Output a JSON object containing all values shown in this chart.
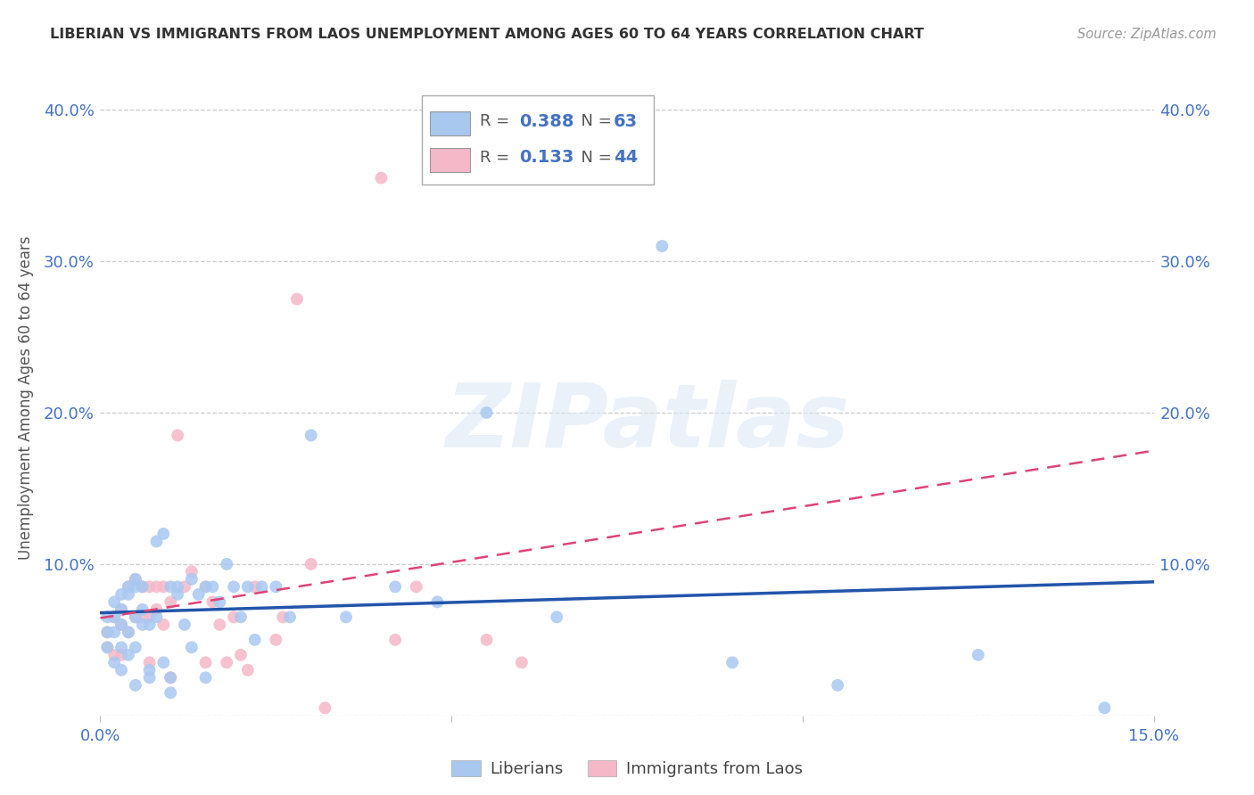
{
  "title": "LIBERIAN VS IMMIGRANTS FROM LAOS UNEMPLOYMENT AMONG AGES 60 TO 64 YEARS CORRELATION CHART",
  "source": "Source: ZipAtlas.com",
  "ylabel": "Unemployment Among Ages 60 to 64 years",
  "xlim": [
    0.0,
    0.15
  ],
  "ylim": [
    0.0,
    0.42
  ],
  "xticks": [
    0.0,
    0.05,
    0.1,
    0.15
  ],
  "xtick_labels": [
    "0.0%",
    "",
    "",
    "15.0%"
  ],
  "yticks": [
    0.0,
    0.1,
    0.2,
    0.3,
    0.4
  ],
  "ytick_labels": [
    "",
    "10.0%",
    "20.0%",
    "30.0%",
    "40.0%"
  ],
  "R_liberian": 0.388,
  "N_liberian": 63,
  "R_laos": 0.133,
  "N_laos": 44,
  "liberian_color": "#a8c8f0",
  "laos_color": "#f5b8c8",
  "liberian_line_color": "#2255aa",
  "laos_line_color": "#dd4477",
  "background_color": "#ffffff",
  "grid_color": "#cccccc",
  "watermark_text": "ZIPatlas",
  "liberian_x": [
    0.001,
    0.001,
    0.001,
    0.002,
    0.002,
    0.002,
    0.002,
    0.003,
    0.003,
    0.003,
    0.003,
    0.003,
    0.004,
    0.004,
    0.004,
    0.004,
    0.005,
    0.005,
    0.005,
    0.005,
    0.005,
    0.006,
    0.006,
    0.006,
    0.007,
    0.007,
    0.007,
    0.008,
    0.008,
    0.009,
    0.009,
    0.01,
    0.01,
    0.01,
    0.011,
    0.011,
    0.012,
    0.013,
    0.013,
    0.014,
    0.015,
    0.015,
    0.016,
    0.017,
    0.018,
    0.019,
    0.02,
    0.021,
    0.022,
    0.023,
    0.025,
    0.027,
    0.03,
    0.035,
    0.042,
    0.048,
    0.055,
    0.065,
    0.08,
    0.09,
    0.105,
    0.125,
    0.143
  ],
  "liberian_y": [
    0.065,
    0.055,
    0.045,
    0.075,
    0.065,
    0.055,
    0.035,
    0.08,
    0.07,
    0.06,
    0.045,
    0.03,
    0.085,
    0.08,
    0.055,
    0.04,
    0.09,
    0.085,
    0.065,
    0.045,
    0.02,
    0.085,
    0.07,
    0.06,
    0.06,
    0.03,
    0.025,
    0.115,
    0.065,
    0.12,
    0.035,
    0.085,
    0.025,
    0.015,
    0.085,
    0.08,
    0.06,
    0.09,
    0.045,
    0.08,
    0.085,
    0.025,
    0.085,
    0.075,
    0.1,
    0.085,
    0.065,
    0.085,
    0.05,
    0.085,
    0.085,
    0.065,
    0.185,
    0.065,
    0.085,
    0.075,
    0.2,
    0.065,
    0.31,
    0.035,
    0.02,
    0.04,
    0.005
  ],
  "laos_x": [
    0.001,
    0.001,
    0.002,
    0.002,
    0.003,
    0.003,
    0.003,
    0.004,
    0.004,
    0.005,
    0.005,
    0.006,
    0.006,
    0.007,
    0.007,
    0.007,
    0.008,
    0.008,
    0.009,
    0.009,
    0.01,
    0.01,
    0.011,
    0.012,
    0.013,
    0.015,
    0.015,
    0.016,
    0.017,
    0.018,
    0.019,
    0.02,
    0.021,
    0.022,
    0.025,
    0.026,
    0.028,
    0.03,
    0.032,
    0.04,
    0.042,
    0.045,
    0.055,
    0.06
  ],
  "laos_y": [
    0.055,
    0.045,
    0.065,
    0.04,
    0.07,
    0.06,
    0.04,
    0.085,
    0.055,
    0.09,
    0.065,
    0.065,
    0.085,
    0.085,
    0.065,
    0.035,
    0.085,
    0.07,
    0.085,
    0.06,
    0.075,
    0.025,
    0.185,
    0.085,
    0.095,
    0.085,
    0.035,
    0.075,
    0.06,
    0.035,
    0.065,
    0.04,
    0.03,
    0.085,
    0.05,
    0.065,
    0.275,
    0.1,
    0.005,
    0.355,
    0.05,
    0.085,
    0.05,
    0.035
  ],
  "legend_label_liberian": "Liberians",
  "legend_label_laos": "Immigrants from Laos"
}
